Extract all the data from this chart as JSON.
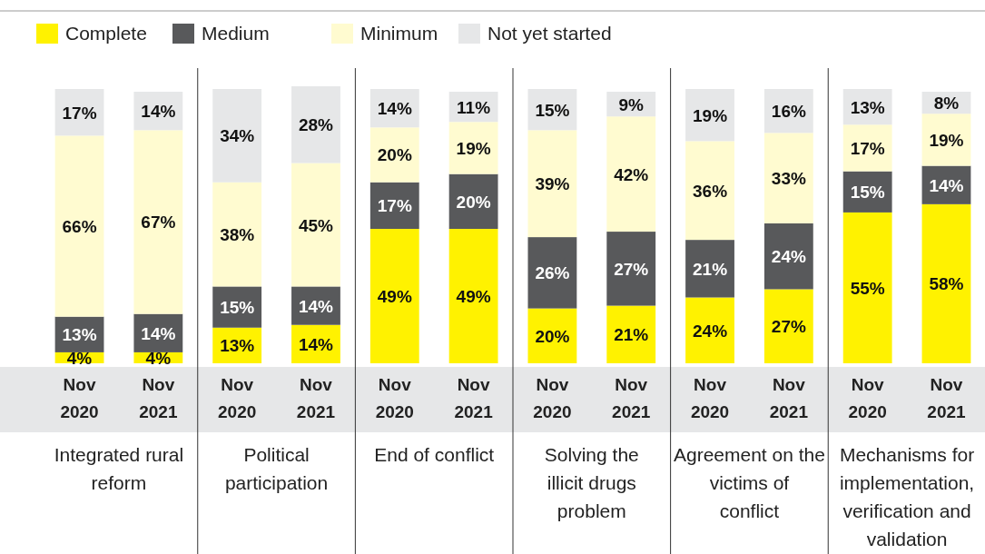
{
  "chart_data": {
    "type": "bar",
    "stacked": true,
    "legend": "top left",
    "categories": [
      "Nov 2020",
      "Nov 2021",
      "Nov 2020",
      "Nov 2021",
      "Nov 2020",
      "Nov 2021",
      "Nov 2020",
      "Nov 2021",
      "Nov 2020",
      "Nov 2021",
      "Nov 2020",
      "Nov 2021"
    ],
    "series": [
      {
        "name": "Complete",
        "color": "#fff200",
        "values": [
          4,
          4,
          13,
          14,
          49,
          49,
          20,
          21,
          24,
          27,
          55,
          58
        ],
        "value_labels": [
          "4%",
          "4%",
          "13%",
          "14%",
          "49%",
          "49%",
          "20%",
          "21%",
          "24%",
          "27%",
          "55%",
          "58%"
        ]
      },
      {
        "name": "Medium",
        "color": "#58595b",
        "values": [
          13,
          14,
          15,
          14,
          17,
          20,
          26,
          27,
          21,
          24,
          15,
          14
        ],
        "value_labels": [
          "13%",
          "14%",
          "15%",
          "14%",
          "17%",
          "20%",
          "26%",
          "27%",
          "21%",
          "24%",
          "15%",
          "14%"
        ]
      },
      {
        "name": "Minimum",
        "color": "#fffbd0",
        "values": [
          66,
          67,
          38,
          45,
          20,
          19,
          39,
          42,
          36,
          33,
          17,
          19
        ],
        "value_labels": [
          "66%",
          "67%",
          "38%",
          "45%",
          "20%",
          "19%",
          "39%",
          "42%",
          "36%",
          "33%",
          "17%",
          "19%"
        ]
      },
      {
        "name": "Not yet started",
        "color": "#e6e7e8",
        "values": [
          17,
          14,
          34,
          28,
          14,
          11,
          15,
          9,
          19,
          16,
          13,
          8
        ],
        "value_labels": [
          "17%",
          "14%",
          "34%",
          "28%",
          "14%",
          "11%",
          "15%",
          "9%",
          "19%",
          "16%",
          "13%",
          "8%"
        ]
      }
    ],
    "annotations": [
      "Integrated rural reform",
      "Political participation",
      "End of conflict",
      "Solving the illicit drugs problem",
      "Agreement on the victims of conflict",
      "Mechanisms for implementation, verification and validation"
    ]
  }
}
